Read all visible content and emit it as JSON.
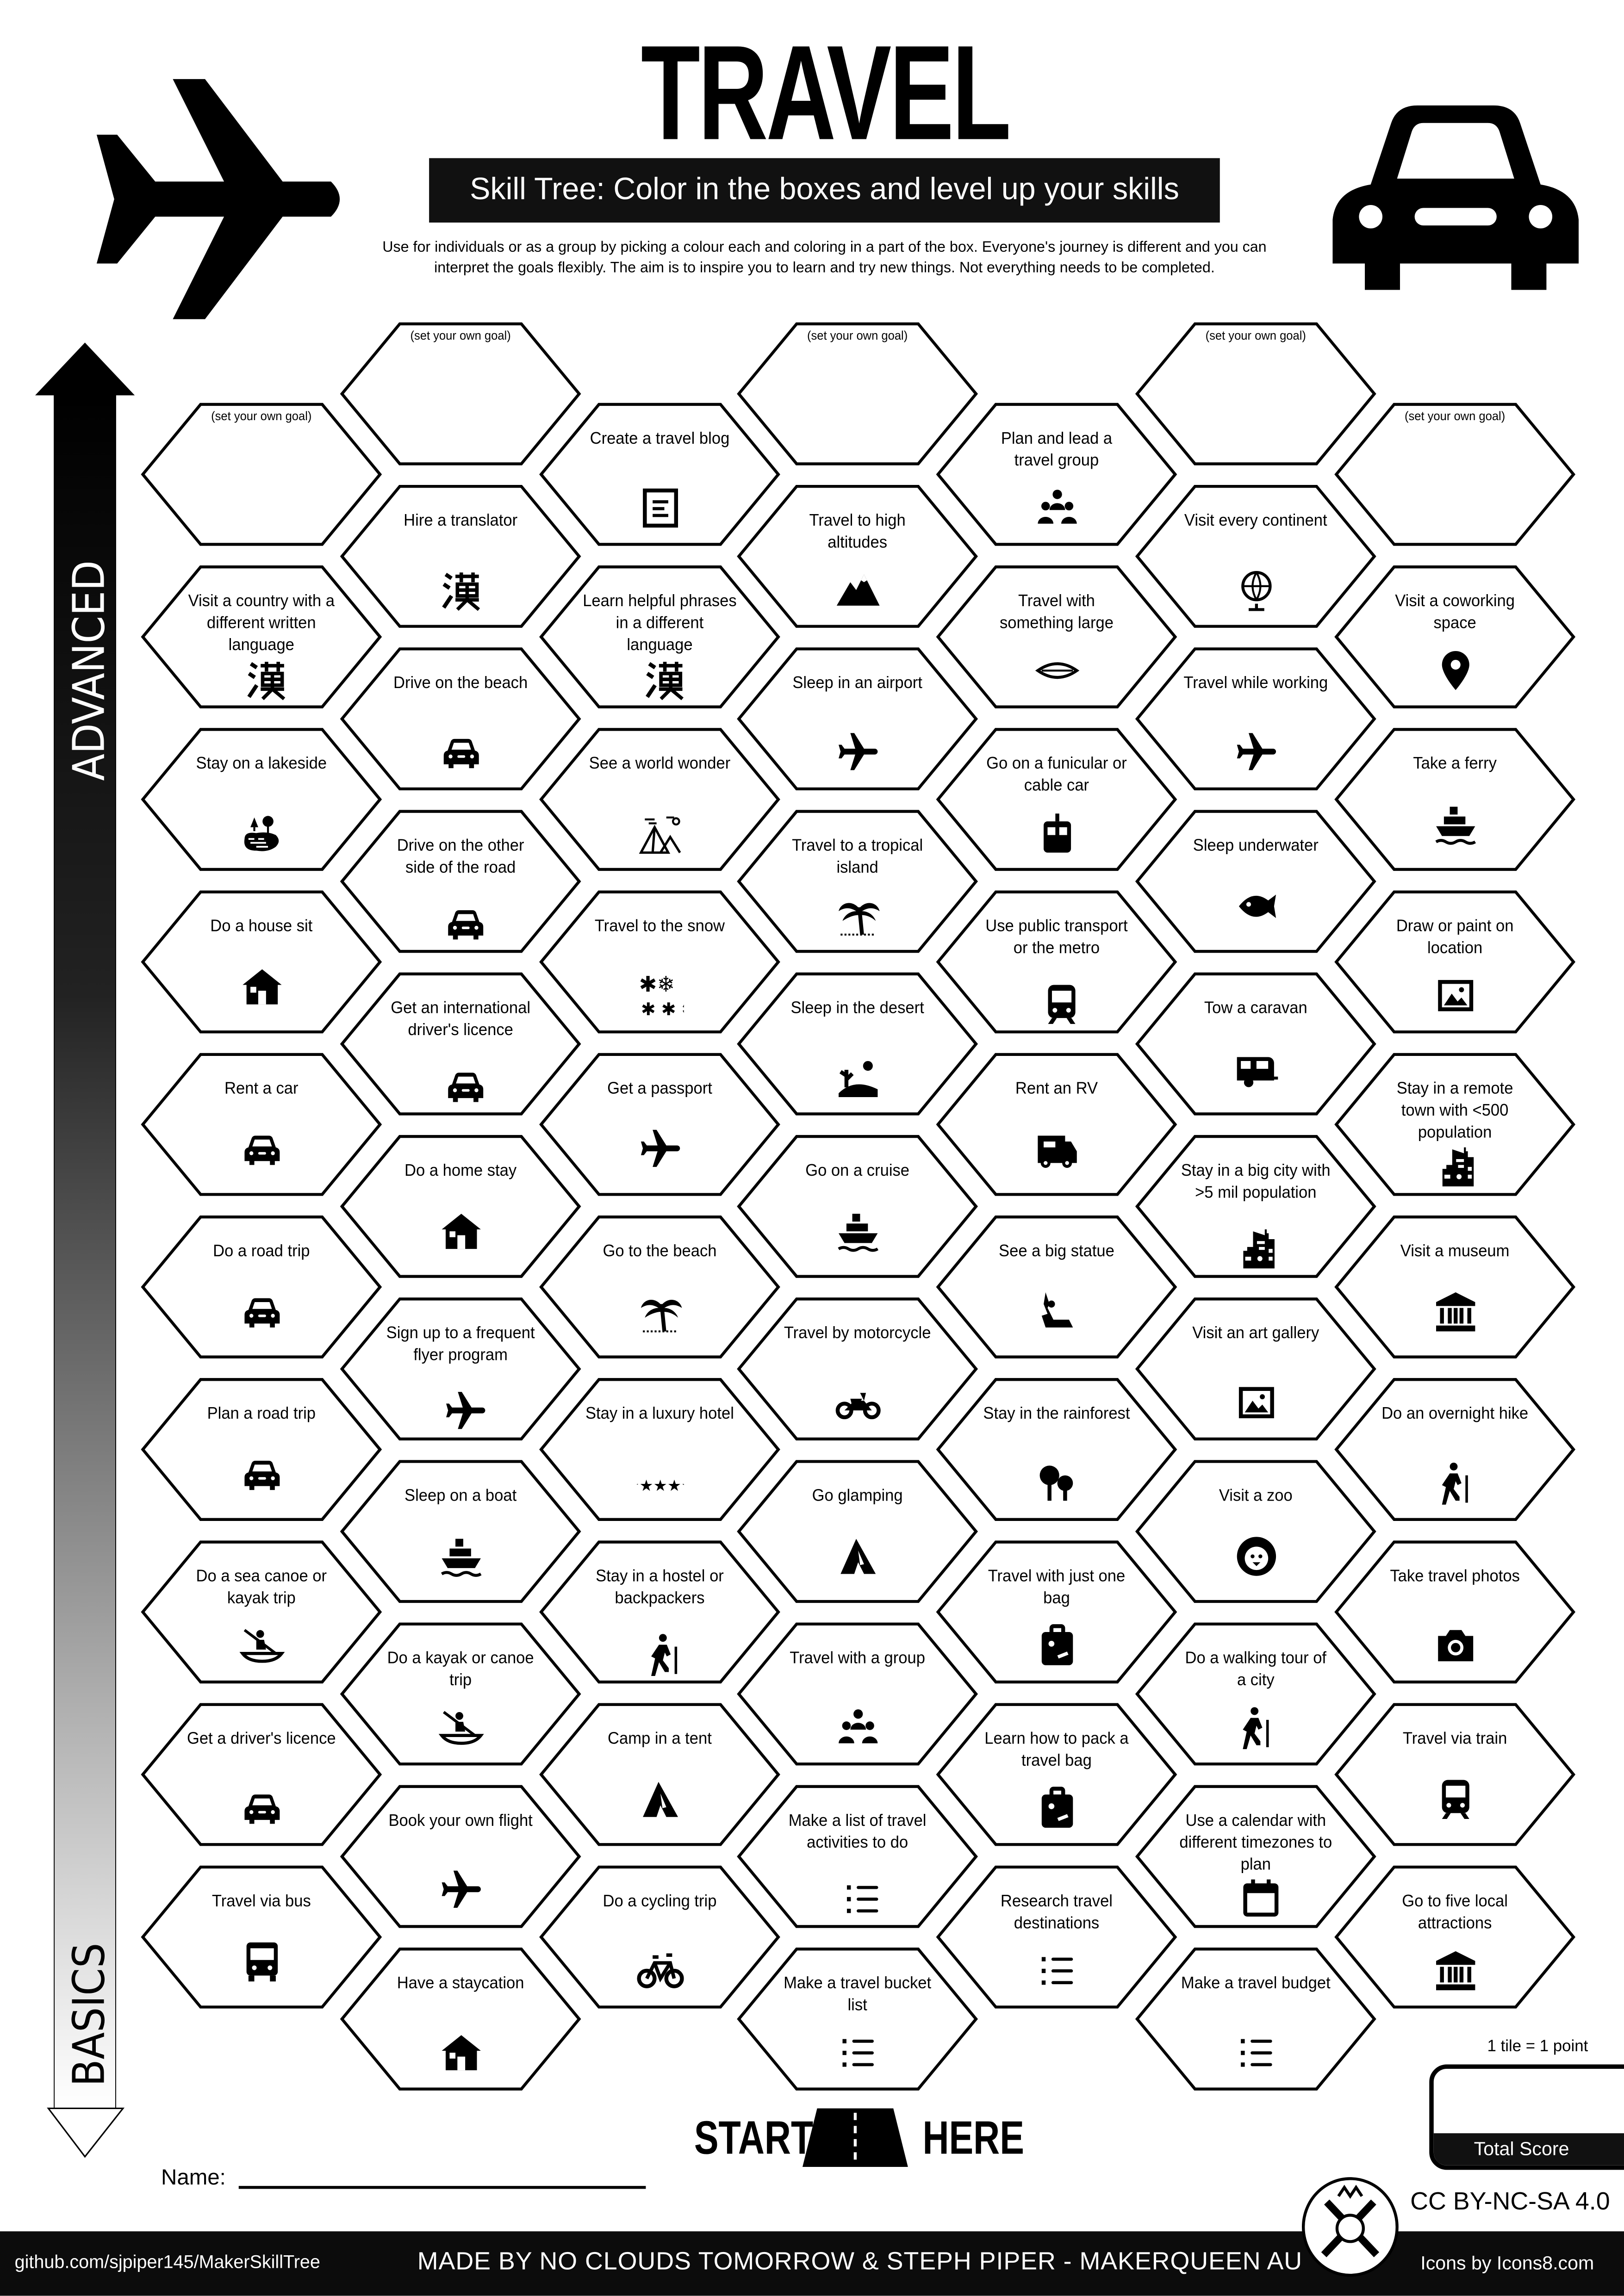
{
  "header": {
    "title": "TRAVEL",
    "subtitle": "Skill Tree:  Color in the boxes and level up your skills",
    "description_line1": "Use for individuals or as a group by picking a colour each and coloring in a part of the box.  Everyone's journey is different and you can",
    "description_line2": "interpret the goals flexibly.  The aim is to inspire you to learn and try new things. Not everything needs to be completed."
  },
  "axis": {
    "top_label": "ADVANCED",
    "bottom_label": "BASICS"
  },
  "tree": {
    "columns": [
      [
        {
          "label": "(set your own goal)",
          "goal": true
        },
        {
          "label": "Visit a country with a different written language",
          "icon": "kanji-icon"
        },
        {
          "label": "Stay on a lakeside",
          "icon": "lake-icon"
        },
        {
          "label": "Do a house sit",
          "icon": "house-icon"
        },
        {
          "label": "Rent a car",
          "icon": "car-icon"
        },
        {
          "label": "Do a road trip",
          "icon": "car-icon"
        },
        {
          "label": "Plan a road trip",
          "icon": "car-icon"
        },
        {
          "label": "Do a sea canoe or kayak trip",
          "icon": "kayak-icon"
        },
        {
          "label": "Get a driver's licence",
          "icon": "car-icon"
        },
        {
          "label": "Travel via bus",
          "icon": "bus-icon"
        }
      ],
      [
        {
          "label": "(set your own goal)",
          "goal": true
        },
        {
          "label": "Hire a translator",
          "icon": "kanji-icon"
        },
        {
          "label": "Drive on the beach",
          "icon": "car-icon"
        },
        {
          "label": "Drive on the other side of the road",
          "icon": "car-icon"
        },
        {
          "label": "Get an international driver's licence",
          "icon": "car-icon"
        },
        {
          "label": "Do a home stay",
          "icon": "house-icon"
        },
        {
          "label": "Sign up to a frequent flyer program",
          "icon": "airplane-icon"
        },
        {
          "label": "Sleep on a boat",
          "icon": "ship-icon"
        },
        {
          "label": "Do a kayak or canoe trip",
          "icon": "kayak-icon"
        },
        {
          "label": "Book your own flight",
          "icon": "airplane-icon"
        },
        {
          "label": "Have a staycation",
          "icon": "house-icon"
        }
      ],
      [
        {
          "label": "Create a travel blog",
          "icon": "blog-icon"
        },
        {
          "label": "Learn helpful phrases in a different language",
          "icon": "kanji-icon"
        },
        {
          "label": "See a world wonder",
          "icon": "pyramids-icon"
        },
        {
          "label": "Travel to the snow",
          "icon": "snowflakes-icon"
        },
        {
          "label": "Get a passport",
          "icon": "airplane-icon"
        },
        {
          "label": "Go to the beach",
          "icon": "palm-tree-icon"
        },
        {
          "label": "Stay in a luxury hotel",
          "icon": "five-stars-icon"
        },
        {
          "label": "Stay in a hostel or backpackers",
          "icon": "hiker-icon"
        },
        {
          "label": "Camp in a tent",
          "icon": "tent-icon"
        },
        {
          "label": "Do a cycling trip",
          "icon": "bicycle-icon"
        }
      ],
      [
        {
          "label": "(set your own goal)",
          "goal": true
        },
        {
          "label": "Travel to high altitudes",
          "icon": "mountain-icon"
        },
        {
          "label": "Sleep in an airport",
          "icon": "airplane-icon"
        },
        {
          "label": "Travel to a tropical island",
          "icon": "palm-tree-icon"
        },
        {
          "label": "Sleep in the desert",
          "icon": "desert-icon"
        },
        {
          "label": "Go on a cruise",
          "icon": "ship-icon"
        },
        {
          "label": "Travel by motorcycle",
          "icon": "motorcycle-icon"
        },
        {
          "label": "Go glamping",
          "icon": "tent-icon"
        },
        {
          "label": "Travel with a group",
          "icon": "group-icon"
        },
        {
          "label": "Make a list of travel activities to do",
          "icon": "list-icon"
        },
        {
          "label": "Make a travel bucket list",
          "icon": "list-icon"
        }
      ],
      [
        {
          "label": "Plan and lead a travel group",
          "icon": "group-icon"
        },
        {
          "label": "Travel with something large",
          "icon": "surfboard-icon"
        },
        {
          "label": "Go on a funicular or cable car",
          "icon": "cable-car-icon"
        },
        {
          "label": "Use public transport or the metro",
          "icon": "train-icon"
        },
        {
          "label": "Rent an RV",
          "icon": "rv-icon"
        },
        {
          "label": "See a big statue",
          "icon": "statue-icon"
        },
        {
          "label": "Stay in the rainforest",
          "icon": "trees-icon"
        },
        {
          "label": "Travel with just one bag",
          "icon": "luggage-icon"
        },
        {
          "label": "Learn how to pack a travel bag",
          "icon": "luggage-icon"
        },
        {
          "label": "Research travel destinations",
          "icon": "list-icon"
        }
      ],
      [
        {
          "label": "(set your own goal)",
          "goal": true
        },
        {
          "label": "Visit every continent",
          "icon": "globe-icon"
        },
        {
          "label": "Travel while working",
          "icon": "airplane-icon"
        },
        {
          "label": "Sleep underwater",
          "icon": "fish-icon"
        },
        {
          "label": "Tow a caravan",
          "icon": "caravan-icon"
        },
        {
          "label": "Stay in a big city with >5 mil population",
          "icon": "city-building-icon"
        },
        {
          "label": "Visit an art gallery",
          "icon": "picture-icon"
        },
        {
          "label": "Visit a zoo",
          "icon": "lion-icon"
        },
        {
          "label": "Do a walking tour of a city",
          "icon": "hiker-icon"
        },
        {
          "label": "Use a calendar with different timezones to plan",
          "icon": "calendar-icon"
        },
        {
          "label": "Make a travel budget",
          "icon": "list-icon"
        }
      ],
      [
        {
          "label": "(set your own goal)",
          "goal": true
        },
        {
          "label": "Visit a coworking space",
          "icon": "map-pin-icon"
        },
        {
          "label": "Take a ferry",
          "icon": "ship-icon"
        },
        {
          "label": "Draw or paint on location",
          "icon": "picture-icon"
        },
        {
          "label": "Stay in a remote town with <500 population",
          "icon": "city-building-icon"
        },
        {
          "label": "Visit a museum",
          "icon": "museum-icon"
        },
        {
          "label": "Do an overnight hike",
          "icon": "hiker-icon"
        },
        {
          "label": "Take travel photos",
          "icon": "camera-icon"
        },
        {
          "label": "Travel via train",
          "icon": "train-icon"
        },
        {
          "label": "Go to five local attractions",
          "icon": "museum-icon"
        }
      ]
    ]
  },
  "start": {
    "left": "START",
    "right": "HERE"
  },
  "name_label": "Name:",
  "score": {
    "note": "1 tile = 1 point",
    "label": "Total Score"
  },
  "license": "CC BY-NC-SA 4.0",
  "footer": {
    "github": "github.com/sjpiper145/MakerSkillTree",
    "made_by": "MADE BY NO CLOUDS TOMORROW & STEPH PIPER  -  MAKERQUEEN AU",
    "icons_credit": "Icons by Icons8.com"
  }
}
